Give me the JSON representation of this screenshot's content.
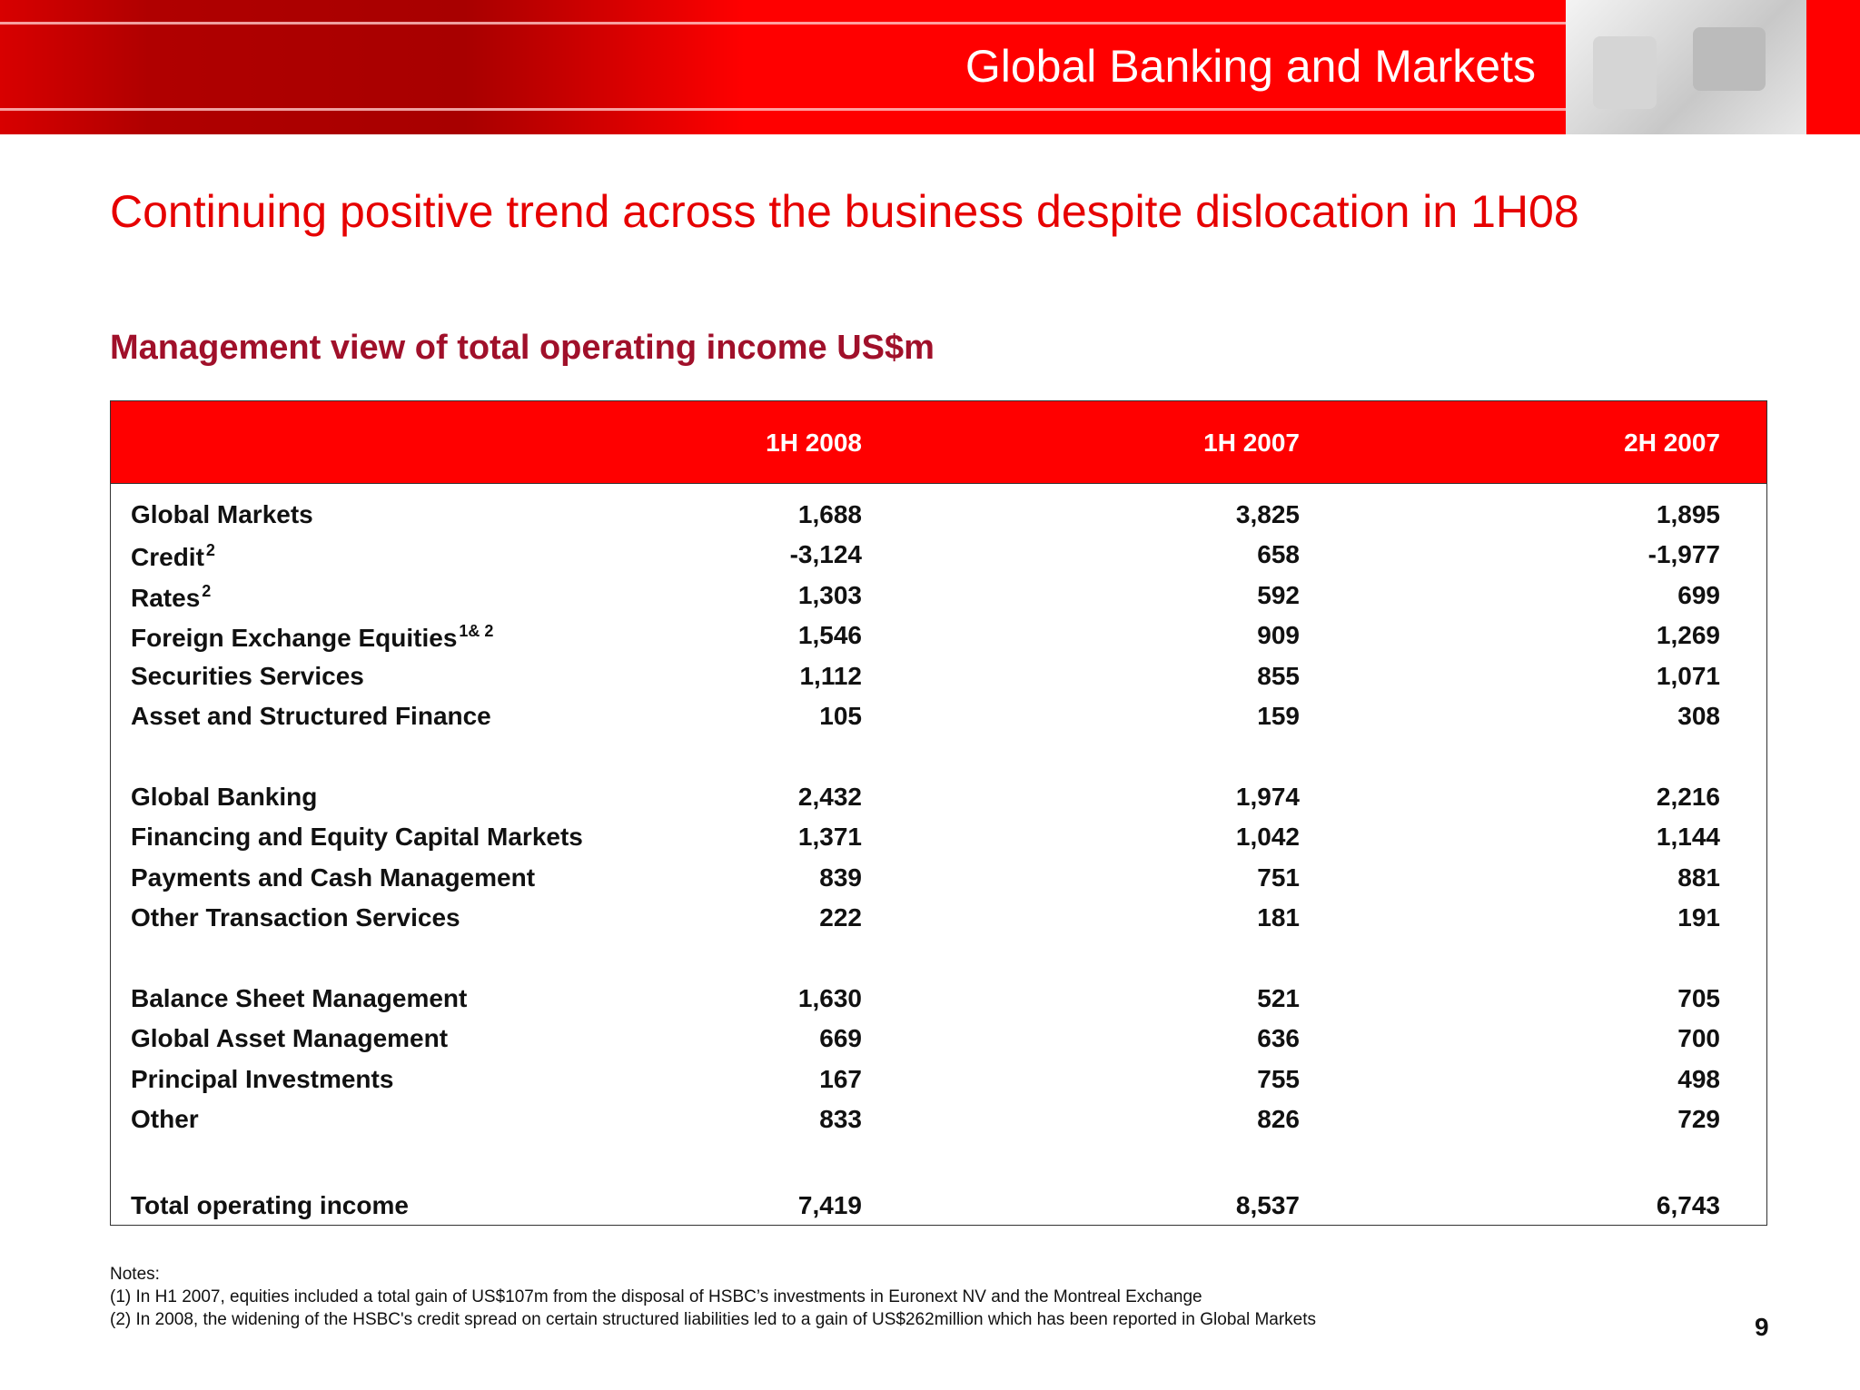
{
  "header": {
    "title": "Global Banking and Markets"
  },
  "subtitle": "Continuing positive trend across the business despite dislocation in 1H08",
  "table_title": "Management view of total operating income US$m",
  "table": {
    "columns": [
      "1H 2008",
      "1H 2007",
      "2H 2007"
    ],
    "sections": [
      [
        {
          "label": "Global Markets",
          "values": [
            "1,688",
            "3,825",
            "1,895"
          ]
        },
        {
          "label": "Credit",
          "sup": "2",
          "values": [
            "-3,124",
            "658",
            "-1,977"
          ]
        },
        {
          "label": "Rates",
          "sup": "2",
          "values": [
            "1,303",
            "592",
            "699"
          ]
        },
        {
          "label": "Foreign Exchange Equities",
          "sup": "1& 2",
          "values": [
            "1,546",
            "909",
            "1,269"
          ]
        },
        {
          "label": "Securities Services",
          "values": [
            "1,112",
            "855",
            "1,071"
          ]
        },
        {
          "label": "Asset and Structured Finance",
          "values": [
            "105",
            "159",
            "308"
          ]
        }
      ],
      [
        {
          "label": "Global Banking",
          "values": [
            "2,432",
            "1,974",
            "2,216"
          ]
        },
        {
          "label": "Financing and Equity Capital Markets",
          "values": [
            "1,371",
            "1,042",
            "1,144"
          ]
        },
        {
          "label": "Payments and Cash Management",
          "values": [
            "839",
            "751",
            "881"
          ]
        },
        {
          "label": "Other Transaction Services",
          "values": [
            "222",
            "181",
            "191"
          ]
        }
      ],
      [
        {
          "label": "Balance Sheet Management",
          "values": [
            "1,630",
            "521",
            "705"
          ]
        },
        {
          "label": "Global Asset Management",
          "values": [
            "669",
            "636",
            "700"
          ]
        },
        {
          "label": "Principal Investments",
          "values": [
            "167",
            "755",
            "498"
          ]
        },
        {
          "label": "Other",
          "values": [
            "833",
            "826",
            "729"
          ]
        }
      ],
      [
        {
          "label": "Total operating income",
          "values": [
            "7,419",
            "8,537",
            "6,743"
          ]
        }
      ]
    ]
  },
  "notes": {
    "heading": "Notes:",
    "items": [
      "(1) In H1 2007, equities included a total gain of US$107m from the disposal of HSBC’s investments in Euronext NV and the Montreal Exchange",
      "(2) In 2008, the widening of the HSBC's credit spread on certain structured liabilities led to a gain of US$262million which has been reported in Global Markets"
    ]
  },
  "page_number": "9"
}
